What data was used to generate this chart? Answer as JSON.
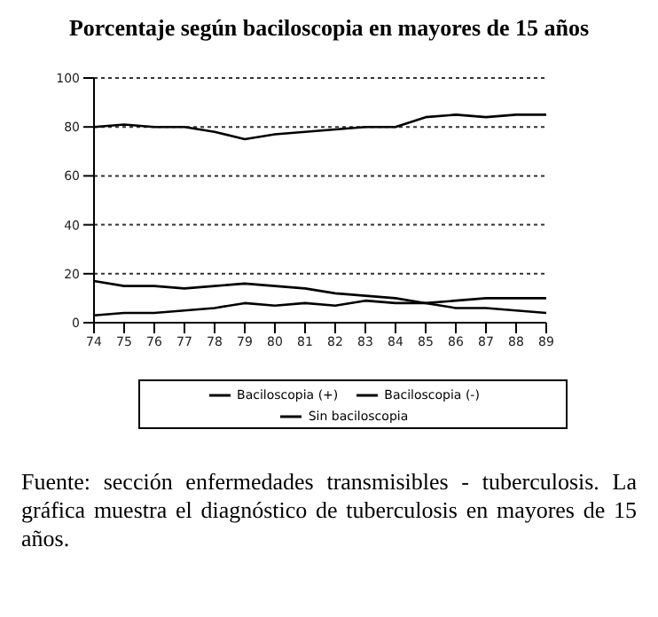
{
  "chart_data": {
    "type": "line",
    "title": "Porcentaje según baciloscopia en mayores de 15 años",
    "categories": [
      "74",
      "75",
      "76",
      "77",
      "78",
      "79",
      "80",
      "81",
      "82",
      "83",
      "84",
      "85",
      "86",
      "87",
      "88",
      "89"
    ],
    "series": [
      {
        "name": "Baciloscopia (+)",
        "color": "#000000",
        "values": [
          80,
          81,
          80,
          80,
          78,
          75,
          77,
          78,
          79,
          80,
          80,
          84,
          85,
          84,
          85,
          85
        ]
      },
      {
        "name": "Baciloscopia (-)",
        "color": "#000000",
        "values": [
          17,
          15,
          15,
          14,
          15,
          16,
          15,
          14,
          12,
          11,
          10,
          8,
          6,
          6,
          5,
          4
        ]
      },
      {
        "name": "Sin baciloscopia",
        "color": "#000000",
        "values": [
          3,
          4,
          4,
          5,
          6,
          8,
          7,
          8,
          7,
          9,
          8,
          8,
          9,
          10,
          10,
          10
        ]
      }
    ],
    "ylim": [
      0,
      100
    ],
    "yticks": [
      0,
      20,
      40,
      60,
      80,
      100
    ],
    "grid": "y",
    "legend": "bottom",
    "marker": "none",
    "line_style": "solid",
    "annotations": [
      "Fuente: sección enfermedades transmisibles - tuberculosis. La gráfica muestra el diagnóstico de tuberculosis en mayores de 15 años."
    ]
  }
}
